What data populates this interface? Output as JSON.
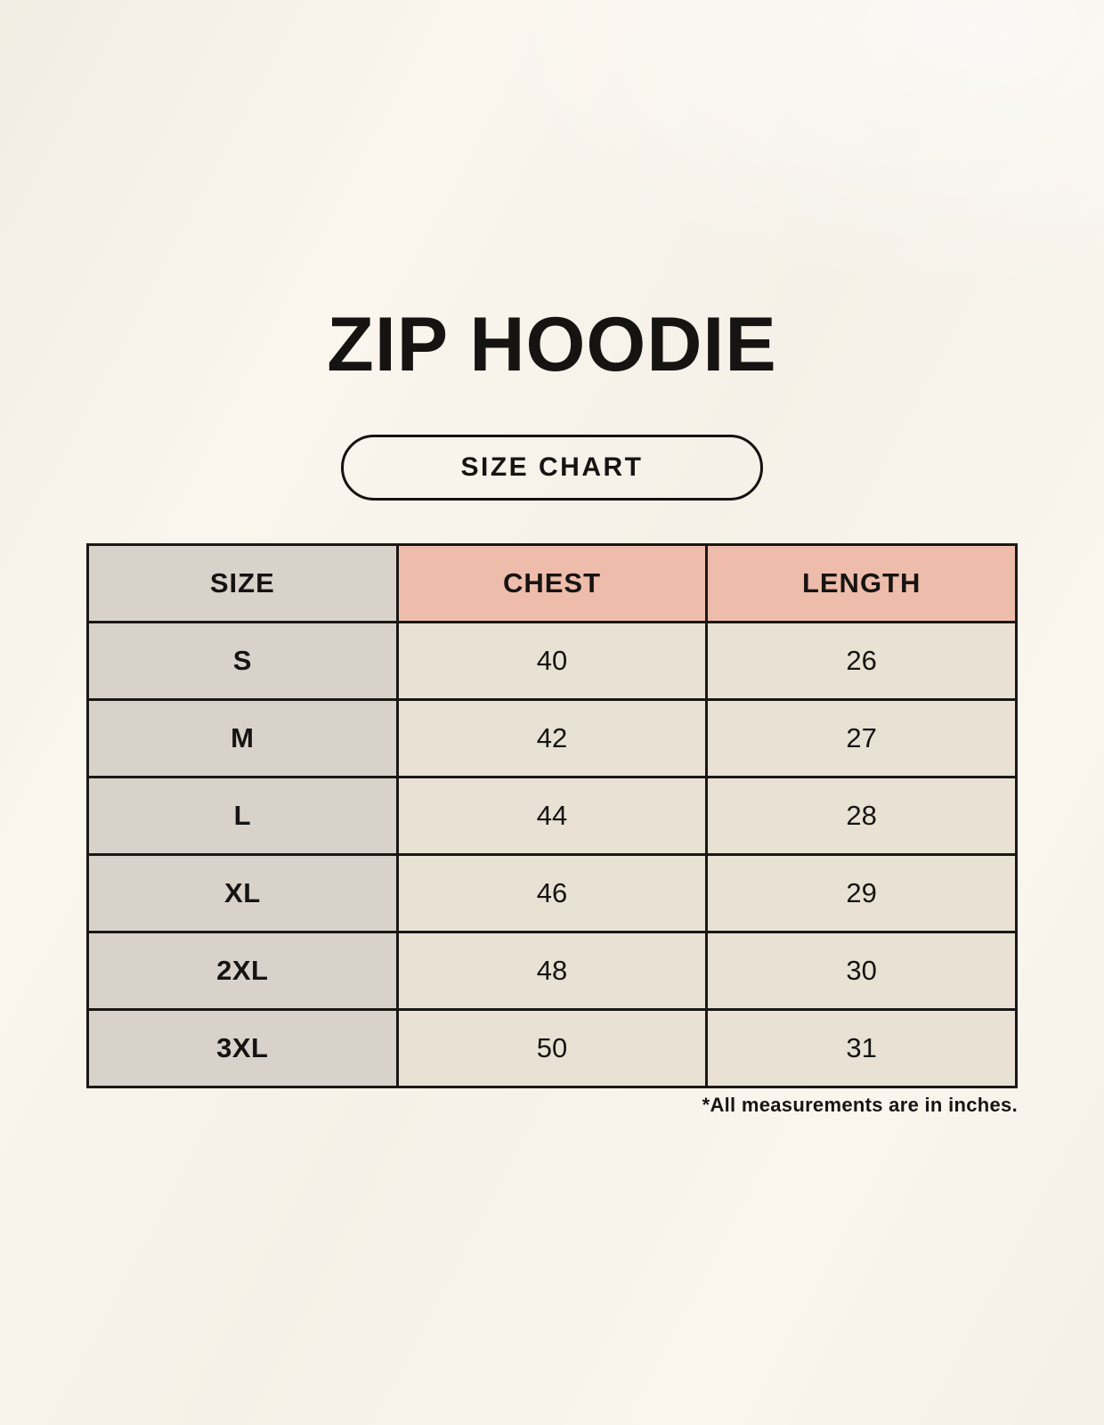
{
  "title": "ZIP HOODIE",
  "size_chart_button": {
    "label": "SIZE CHART"
  },
  "table": {
    "columns": [
      "SIZE",
      "CHEST",
      "LENGTH"
    ],
    "rows": [
      {
        "size": "S",
        "chest": "40",
        "length": "26"
      },
      {
        "size": "M",
        "chest": "42",
        "length": "27"
      },
      {
        "size": "L",
        "chest": "44",
        "length": "28"
      },
      {
        "size": "XL",
        "chest": "46",
        "length": "29"
      },
      {
        "size": "2XL",
        "chest": "48",
        "length": "30"
      },
      {
        "size": "3XL",
        "chest": "50",
        "length": "31"
      }
    ]
  },
  "footnote": "*All measurements are in inches.",
  "colors": {
    "page_bg": "#f8f4ec",
    "size_col_bg": "#d9d2cb",
    "measure_header_bg": "#eebcab",
    "value_cell_bg": "#e9e2d4",
    "table_border": "#1a1714",
    "text": "#161412"
  }
}
